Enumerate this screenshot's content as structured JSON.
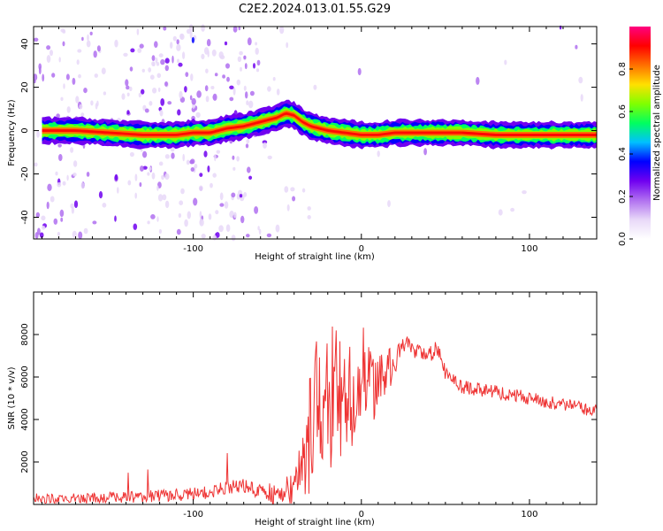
{
  "chart_data": [
    {
      "type": "heatmap",
      "title": "C2E2.2024.013.01.55.G29",
      "xlabel": "Height of straight line (km)",
      "ylabel": "Frequency (Hz)",
      "xlim": [
        -195,
        140
      ],
      "ylim": [
        -50,
        48
      ],
      "xticks": [
        -100,
        0,
        100
      ],
      "yticks": [
        -40,
        -20,
        0,
        20,
        40
      ],
      "colorbar": {
        "label": "Normalized spectral amplitude",
        "range": [
          0,
          1
        ],
        "ticks": [
          "0.0",
          "0.2",
          "0.4",
          "0.6",
          "0.8"
        ],
        "colors": [
          "#ffffff",
          "#e8d8f8",
          "#b070f0",
          "#7000f0",
          "#0000ff",
          "#00c0ff",
          "#00ff60",
          "#80ff00",
          "#ffe000",
          "#ff7000",
          "#ff0000",
          "#ff0080"
        ]
      },
      "ridge": {
        "x": [
          -190,
          -170,
          -150,
          -130,
          -110,
          -100,
          -90,
          -80,
          -70,
          -60,
          -50,
          -45,
          -40,
          -35,
          -30,
          -25,
          -20,
          -10,
          0,
          10,
          20,
          40,
          60,
          80,
          100,
          120,
          140
        ],
        "y": [
          0,
          0,
          -1,
          -2,
          -2,
          -1,
          -1,
          1,
          2,
          4,
          6,
          8,
          7,
          4,
          2,
          1,
          0,
          -1,
          -2,
          -2,
          -1,
          -1,
          -1,
          -2,
          -2,
          -2,
          -2
        ]
      }
    },
    {
      "type": "line",
      "xlabel": "Height of straight line (km)",
      "ylabel": "SNR (10 * v/v)",
      "xlim": [
        -195,
        140
      ],
      "ylim": [
        0,
        10000
      ],
      "xticks": [
        -100,
        0,
        100
      ],
      "yticks": [
        2000,
        4000,
        6000,
        8000
      ],
      "color": "#ee3333",
      "envelope": {
        "x": [
          -195,
          -180,
          -160,
          -140,
          -120,
          -100,
          -90,
          -80,
          -70,
          -60,
          -50,
          -40,
          -35,
          -30,
          -25,
          -20,
          -15,
          -10,
          -5,
          0,
          5,
          10,
          15,
          20,
          25,
          30,
          40,
          45,
          50,
          60,
          80,
          100,
          120,
          140
        ],
        "y": [
          300,
          250,
          300,
          350,
          400,
          500,
          600,
          800,
          900,
          600,
          400,
          800,
          1500,
          3500,
          5200,
          4800,
          5500,
          4500,
          5200,
          6500,
          5500,
          5800,
          6200,
          6800,
          7800,
          7200,
          7000,
          7400,
          6200,
          5500,
          5300,
          5000,
          4700,
          4400
        ]
      },
      "noise": {
        "x": [
          -195,
          -60,
          -40,
          -30,
          -20,
          -10,
          0,
          10,
          20,
          30,
          50,
          140
        ],
        "amp": [
          220,
          350,
          900,
          3000,
          3500,
          2800,
          2200,
          1500,
          700,
          400,
          350,
          300
        ]
      }
    }
  ]
}
